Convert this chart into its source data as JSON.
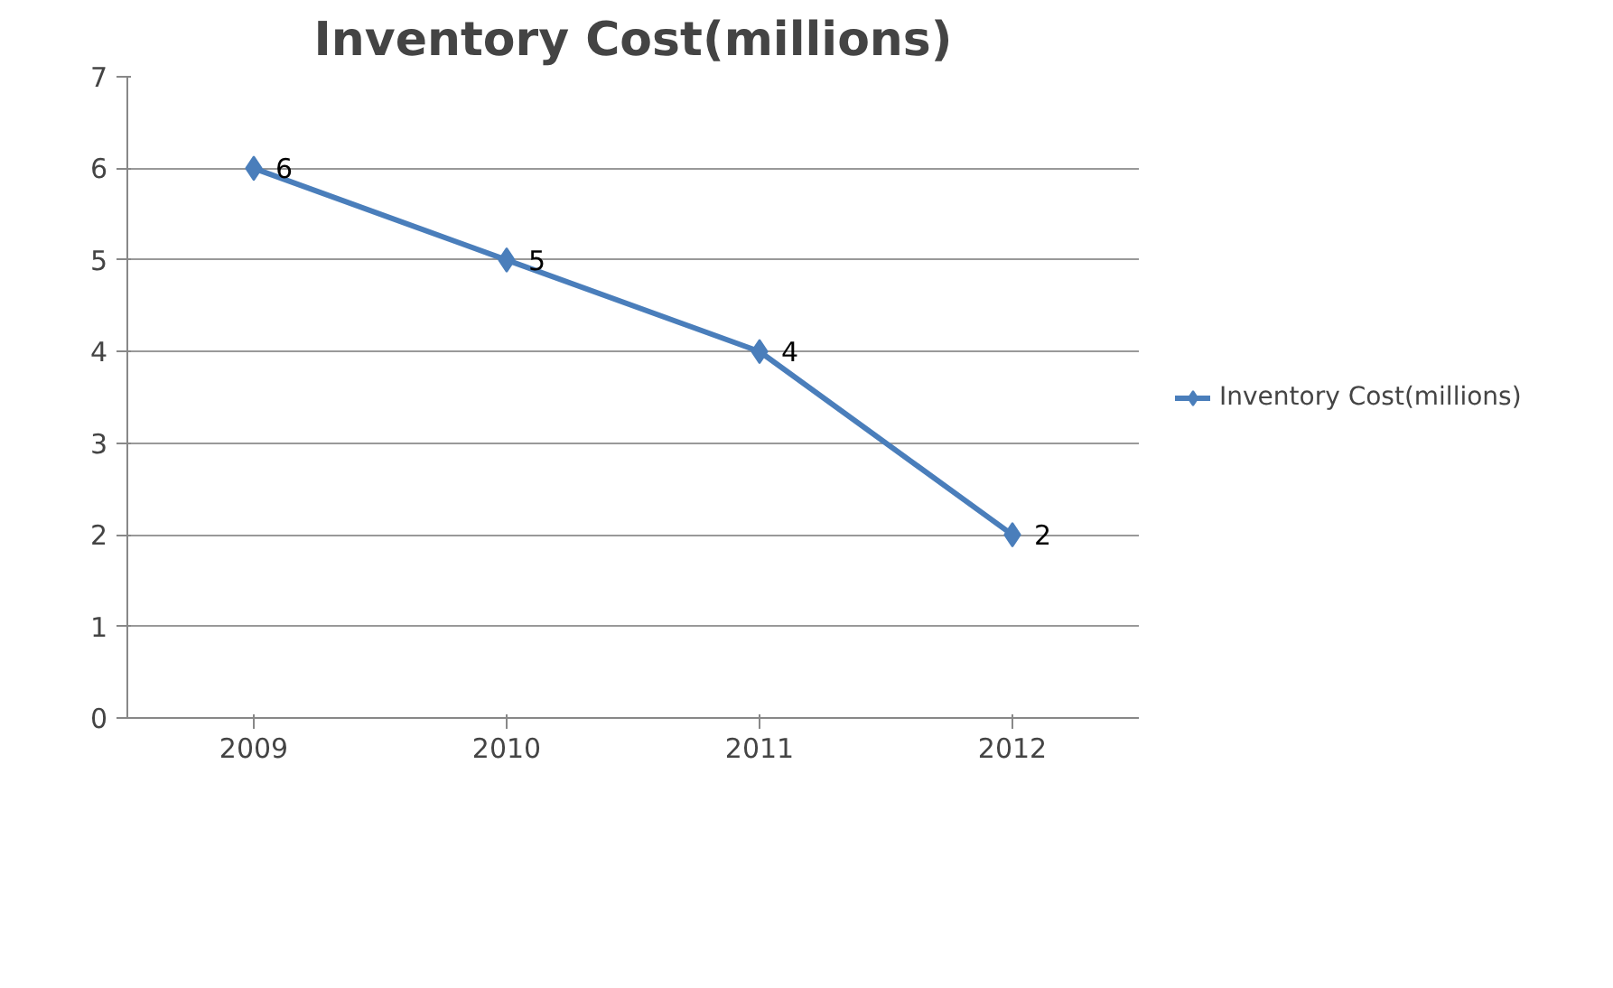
{
  "chart_data": {
    "type": "line",
    "title": "Inventory Cost(millions)",
    "categories": [
      "2009",
      "2010",
      "2011",
      "2012"
    ],
    "series": [
      {
        "name": "Inventory Cost(millions)",
        "color": "#4a7ebb",
        "values": [
          6,
          5,
          4,
          2
        ]
      }
    ],
    "ylim": [
      0,
      7
    ],
    "yticks": [
      0,
      1,
      2,
      3,
      4,
      5,
      6,
      7
    ],
    "grid": "y",
    "legend": "right",
    "marker": "diamond",
    "line_style": "solid",
    "data_labels": true
  }
}
